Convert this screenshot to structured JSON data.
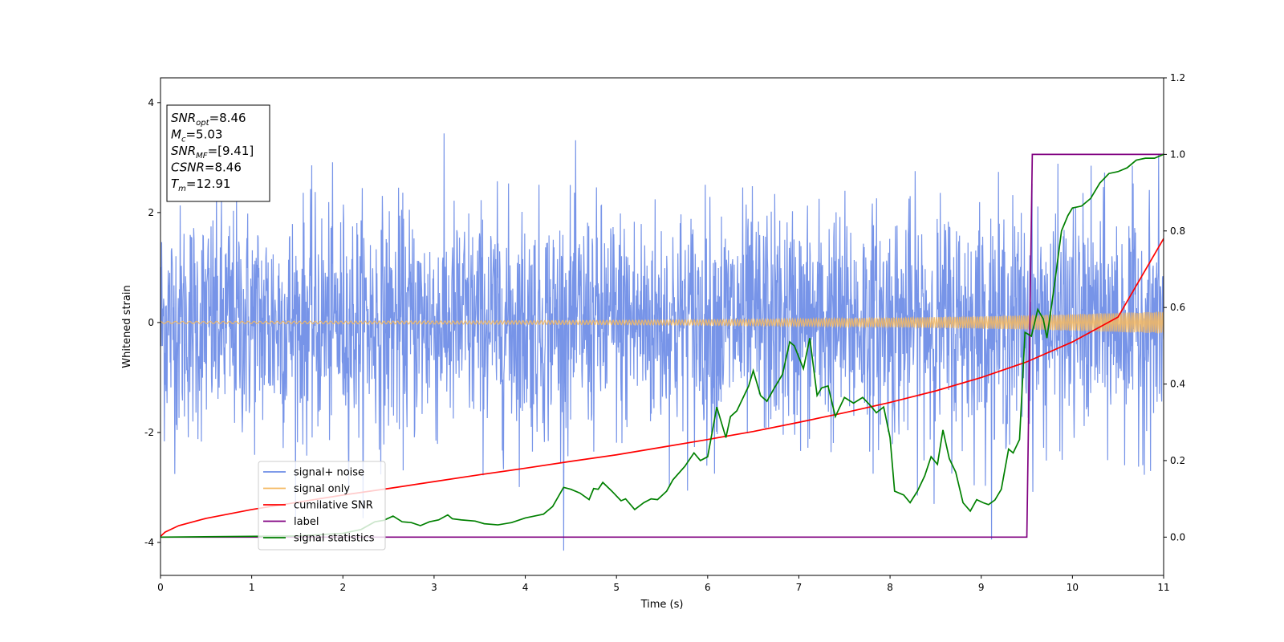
{
  "chart_data": {
    "type": "line",
    "xlabel": "Time (s)",
    "ylabel": "Whitened strain",
    "xlim": [
      0,
      11
    ],
    "ylim": [
      -4.6,
      4.45
    ],
    "y2lim": [
      -0.1,
      1.2
    ],
    "x_ticks": [
      0,
      1,
      2,
      3,
      4,
      5,
      6,
      7,
      8,
      9,
      10,
      11
    ],
    "y_ticks": [
      -4,
      -2,
      0,
      2,
      4
    ],
    "y2_ticks": [
      0.0,
      0.2,
      0.4,
      0.6,
      0.8,
      1.0,
      1.2
    ],
    "y2_tick_labels": [
      "0.0",
      "0.2",
      "0.4",
      "0.6",
      "0.8",
      "1.0",
      "1.2"
    ],
    "grid": false,
    "legend_position": "lower-left",
    "colors": {
      "signal_noise": "#6b8be6",
      "signal_only": "#f5b860",
      "cumulative_snr": "#ff0000",
      "label": "#800080",
      "signal_statistics": "#008000"
    },
    "info_box": [
      {
        "key": "snr_opt",
        "symbol": "SNR",
        "sub": "opt",
        "value": "=8.46"
      },
      {
        "key": "mc",
        "symbol": "M",
        "sub": "c",
        "value": "=5.03"
      },
      {
        "key": "snr_mf",
        "symbol": "SNR",
        "sub": "MF",
        "value": "=[9.41]"
      },
      {
        "key": "csnr",
        "symbol": "CSNR",
        "sub": "",
        "value": "=8.46"
      },
      {
        "key": "tm",
        "symbol": "T",
        "sub": "m",
        "value": "=12.91"
      }
    ],
    "series": [
      {
        "name": "signal+ noise",
        "axis": "left",
        "noise_model": {
          "std": 1.05,
          "t_start": 0,
          "t_end": 11,
          "samples": 2600
        }
      },
      {
        "name": "signal only",
        "axis": "left",
        "envelope": {
          "x": [
            0,
            1,
            2,
            3,
            4,
            5,
            6,
            7,
            8,
            9,
            10,
            11
          ],
          "amp": [
            0.02,
            0.022,
            0.025,
            0.028,
            0.033,
            0.04,
            0.05,
            0.065,
            0.085,
            0.11,
            0.15,
            0.2
          ]
        }
      },
      {
        "name": "cumilative SNR",
        "axis": "right",
        "x": [
          0,
          0.05,
          0.2,
          0.5,
          1,
          1.5,
          2,
          2.5,
          3,
          3.5,
          4,
          4.5,
          5,
          5.5,
          6,
          6.5,
          7,
          7.5,
          8,
          8.5,
          9,
          9.5,
          10,
          10.5,
          11
        ],
        "y": [
          0.002,
          0.013,
          0.03,
          0.049,
          0.072,
          0.091,
          0.11,
          0.127,
          0.145,
          0.163,
          0.18,
          0.198,
          0.215,
          0.235,
          0.255,
          0.276,
          0.3,
          0.325,
          0.352,
          0.382,
          0.417,
          0.458,
          0.51,
          0.575,
          0.78
        ]
      },
      {
        "name": "label",
        "axis": "right",
        "x": [
          0,
          9.5,
          9.56,
          11
        ],
        "y": [
          0,
          0,
          1,
          1
        ]
      },
      {
        "name": "signal statistics",
        "axis": "right",
        "x": [
          0,
          1.5,
          2.0,
          2.2,
          2.35,
          2.45,
          2.55,
          2.65,
          2.75,
          2.85,
          2.95,
          3.05,
          3.15,
          3.2,
          3.3,
          3.45,
          3.55,
          3.7,
          3.85,
          4.0,
          4.1,
          4.2,
          4.3,
          4.42,
          4.5,
          4.6,
          4.7,
          4.75,
          4.8,
          4.85,
          4.95,
          5.05,
          5.1,
          5.2,
          5.3,
          5.38,
          5.45,
          5.55,
          5.62,
          5.75,
          5.85,
          5.92,
          6.0,
          6.1,
          6.2,
          6.25,
          6.32,
          6.45,
          6.5,
          6.58,
          6.65,
          6.72,
          6.82,
          6.9,
          6.95,
          7.05,
          7.12,
          7.2,
          7.25,
          7.32,
          7.4,
          7.5,
          7.6,
          7.7,
          7.78,
          7.85,
          7.93,
          8.0,
          8.05,
          8.15,
          8.22,
          8.3,
          8.38,
          8.45,
          8.52,
          8.58,
          8.65,
          8.72,
          8.8,
          8.88,
          8.95,
          9.02,
          9.08,
          9.15,
          9.22,
          9.3,
          9.35,
          9.42,
          9.48,
          9.55,
          9.62,
          9.68,
          9.72,
          9.78,
          9.82,
          9.88,
          9.95,
          10.0,
          10.1,
          10.2,
          10.3,
          10.4,
          10.5,
          10.6,
          10.7,
          10.8,
          10.9,
          11.0
        ],
        "y": [
          0.0,
          0.003,
          0.01,
          0.02,
          0.04,
          0.044,
          0.055,
          0.04,
          0.038,
          0.03,
          0.04,
          0.045,
          0.058,
          0.048,
          0.045,
          0.042,
          0.035,
          0.032,
          0.038,
          0.05,
          0.055,
          0.06,
          0.08,
          0.13,
          0.125,
          0.115,
          0.098,
          0.127,
          0.125,
          0.143,
          0.12,
          0.095,
          0.1,
          0.072,
          0.09,
          0.1,
          0.098,
          0.12,
          0.15,
          0.185,
          0.22,
          0.2,
          0.21,
          0.34,
          0.26,
          0.315,
          0.33,
          0.395,
          0.435,
          0.37,
          0.355,
          0.385,
          0.425,
          0.51,
          0.5,
          0.44,
          0.52,
          0.37,
          0.39,
          0.395,
          0.315,
          0.365,
          0.35,
          0.365,
          0.345,
          0.325,
          0.34,
          0.26,
          0.12,
          0.11,
          0.09,
          0.12,
          0.16,
          0.21,
          0.19,
          0.28,
          0.205,
          0.17,
          0.09,
          0.068,
          0.098,
          0.09,
          0.085,
          0.097,
          0.125,
          0.23,
          0.22,
          0.255,
          0.535,
          0.525,
          0.595,
          0.57,
          0.52,
          0.62,
          0.69,
          0.8,
          0.84,
          0.86,
          0.865,
          0.885,
          0.925,
          0.95,
          0.955,
          0.965,
          0.985,
          0.99,
          0.99,
          1.0
        ]
      }
    ]
  }
}
